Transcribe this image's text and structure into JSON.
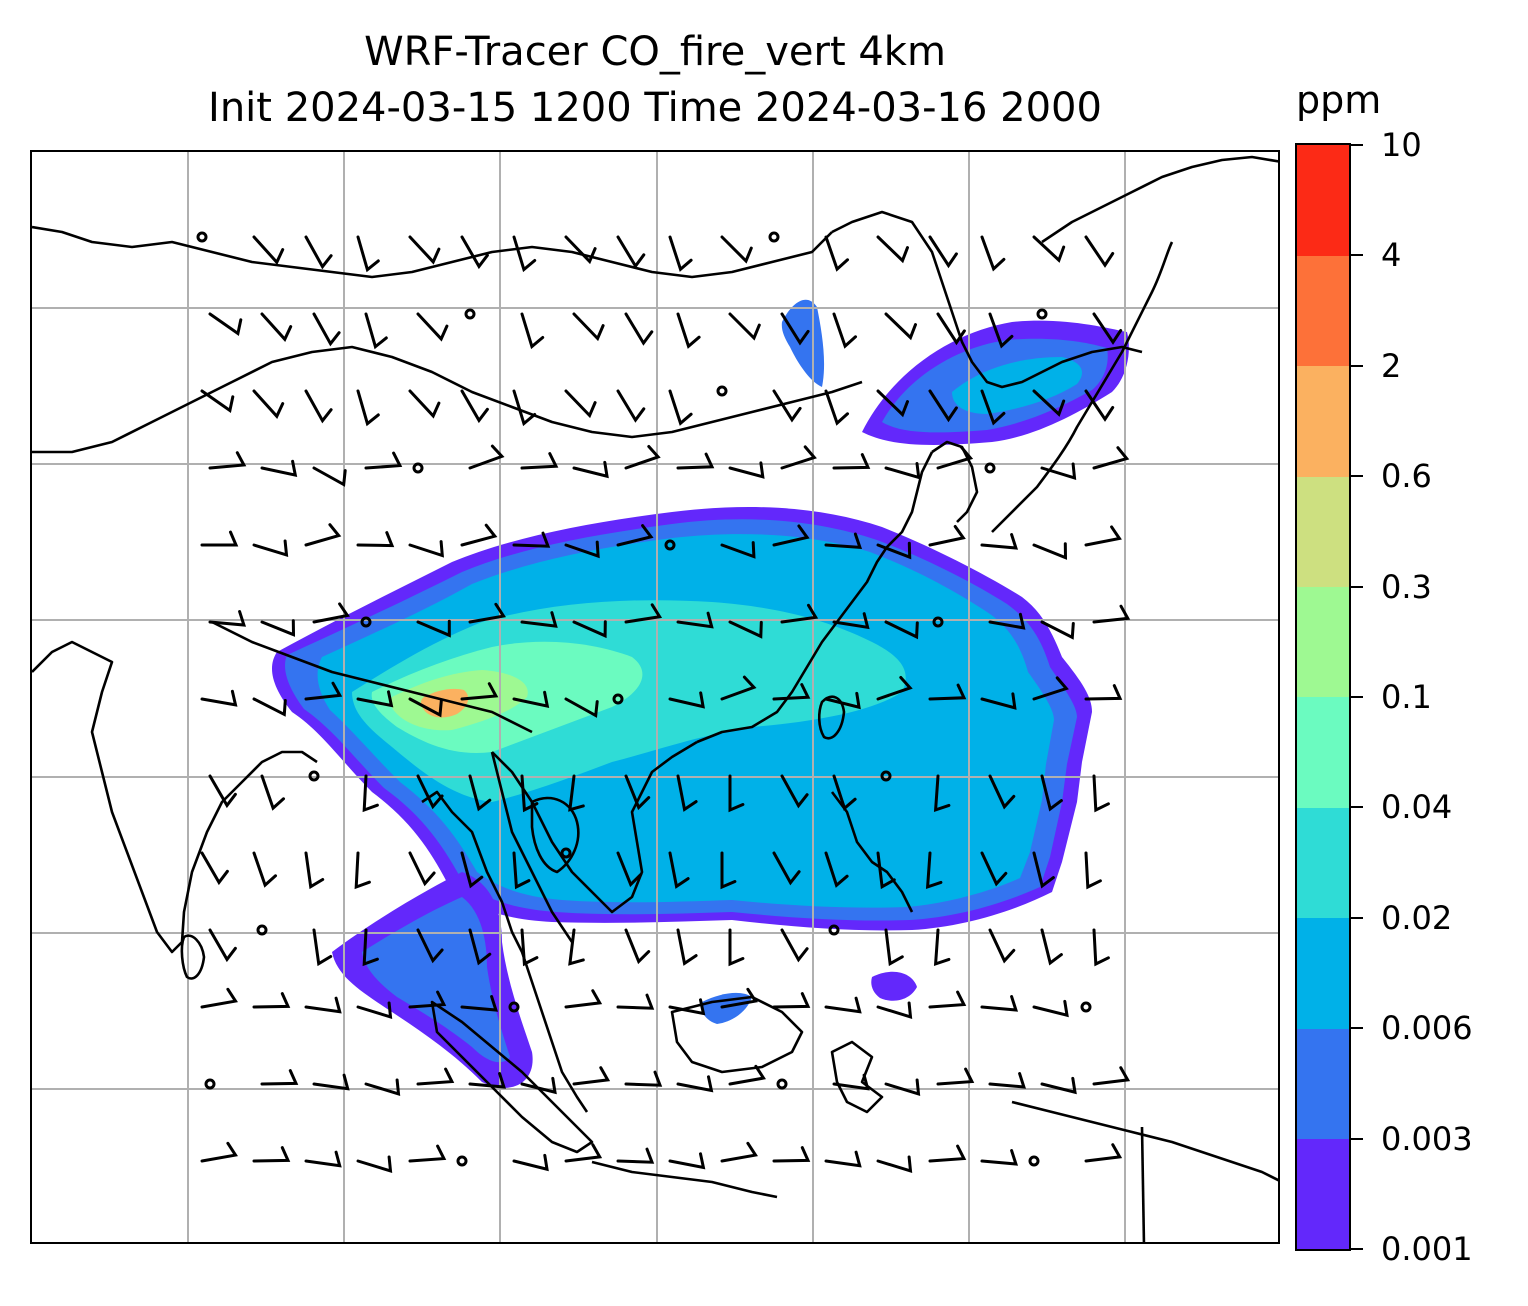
{
  "title": {
    "line1": "WRF-Tracer CO_fire_vert 4km",
    "line2": "Init 2024-03-15 1200 Time 2024-03-16 2000"
  },
  "colorbar": {
    "unit": "ppm",
    "ticks": [
      "0.001",
      "0.003",
      "0.006",
      "0.02",
      "0.04",
      "0.1",
      "0.3",
      "0.6",
      "2",
      "4",
      "10"
    ],
    "colors": [
      "#6328fb",
      "#3474f0",
      "#00b1e8",
      "#2fdcd6",
      "#6bfbc0",
      "#9ef992",
      "#cde080",
      "#fbb160",
      "#fd7139",
      "#fc2a16"
    ]
  },
  "map": {
    "layers": [
      "CO_fire_vert concentration",
      "wind barbs",
      "coastlines",
      "country borders",
      "gridlines"
    ],
    "gridline_color": "#b0b0b0"
  }
}
